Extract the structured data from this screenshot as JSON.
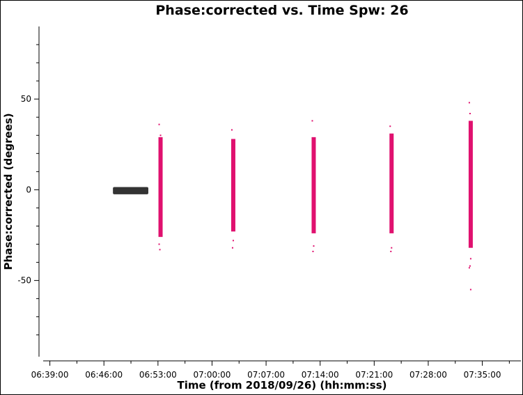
{
  "chart_data": {
    "type": "scatter",
    "title": "Phase:corrected vs. Time Spw: 26",
    "xlabel": "Time (from 2018/09/26) (hh:mm:ss)",
    "ylabel": "Phase:corrected (degrees)",
    "x_tick_labels": [
      "06:39:00",
      "06:46:00",
      "06:53:00",
      "07:00:00",
      "07:07:00",
      "07:14:00",
      "07:21:00",
      "07:28:00",
      "07:35:00"
    ],
    "y_tick_labels": [
      "50",
      "0",
      "-50"
    ],
    "y_ticks": [
      50,
      0,
      -50
    ],
    "ylim": [
      -92,
      90
    ],
    "xlim": [
      "06:38:08",
      "07:40:00"
    ],
    "grid": false,
    "colors": {
      "reference": "#333333",
      "scan": "#e0116f"
    },
    "series": [
      {
        "color": "reference",
        "kind": "block",
        "x_start": "06:47:10",
        "x_end": "06:51:45",
        "y_min": -2.5,
        "y_max": 1.5
      },
      {
        "color": "scan",
        "kind": "column",
        "x": "06:53:20",
        "y_min": -26,
        "y_max": 29,
        "y_outliers": [
          36,
          -33,
          30,
          -30
        ]
      },
      {
        "color": "scan",
        "kind": "column",
        "x": "07:02:45",
        "y_min": -23,
        "y_max": 28,
        "y_outliers": [
          33,
          -32,
          -28
        ]
      },
      {
        "color": "scan",
        "kind": "column",
        "x": "07:13:10",
        "y_min": -24,
        "y_max": 29,
        "y_outliers": [
          38,
          -34,
          -31
        ]
      },
      {
        "color": "scan",
        "kind": "column",
        "x": "07:23:15",
        "y_min": -24,
        "y_max": 31,
        "y_outliers": [
          35,
          -34,
          -32
        ]
      },
      {
        "color": "scan",
        "kind": "column",
        "x": "07:33:30",
        "y_min": -32,
        "y_max": 38,
        "y_outliers": [
          48,
          42,
          -55,
          -43,
          -42,
          -38
        ]
      }
    ]
  }
}
